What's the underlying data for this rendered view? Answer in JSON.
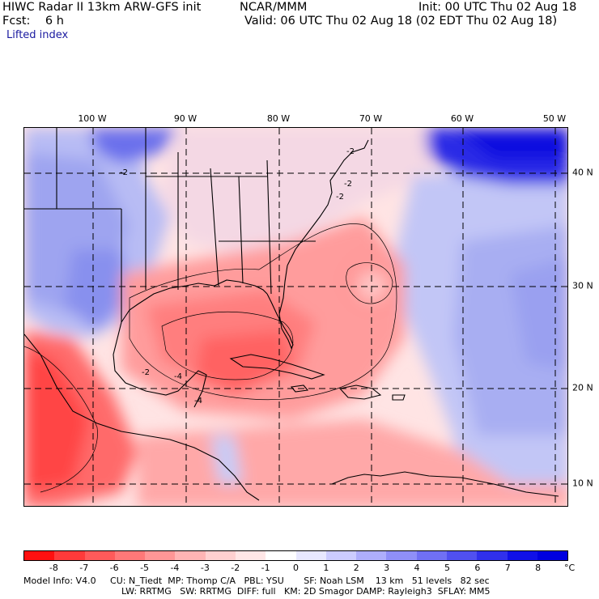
{
  "header": {
    "title": "HIWC Radar II 13km ARW-GFS init",
    "agency": "NCAR/MMM",
    "init": "Init: 00 UTC Thu 02 Aug 18",
    "fcst": "Fcst:    6 h",
    "valid": "Valid: 06 UTC Thu 02 Aug 18 (02 EDT Thu 02 Aug 18)",
    "field": "Lifted index"
  },
  "map": {
    "lon_labels": [
      "100 W",
      "90 W",
      "80 W",
      "70 W",
      "60 W",
      "50 W"
    ],
    "lat_labels": [
      "40 N",
      "30 N",
      "20 N",
      "10 N"
    ],
    "contour_labels": [
      "-2",
      "-2",
      "-2",
      "-2",
      "-4",
      "-4",
      "-2"
    ]
  },
  "colorbar": {
    "labels": [
      "-8",
      "-7",
      "-6",
      "-5",
      "-4",
      "-3",
      "-2",
      "-1",
      "0",
      "1",
      "2",
      "3",
      "4",
      "5",
      "6",
      "7",
      "8"
    ],
    "unit": "°C",
    "colors": [
      "#ff1010",
      "#ff3a3a",
      "#ff5a5a",
      "#ff7878",
      "#ff9696",
      "#ffb4b4",
      "#ffd0d0",
      "#ffe6e6",
      "#ffffff",
      "#e8e8ff",
      "#ccccff",
      "#aeaefc",
      "#8f8ff8",
      "#7070f4",
      "#5050f0",
      "#3030ec",
      "#1010e8",
      "#0000e0"
    ]
  },
  "footer": {
    "line1": "Model Info: V4.0     CU: N_Tiedt  MP: Thomp C/A   PBL: YSU       SF: Noah LSM    13 km   51 levels   82 sec",
    "line2": "LW: RRTMG   SW: RRTMG  DIFF: full   KM: 2D Smagor DAMP: Rayleigh3  SFLAY: MM5"
  }
}
